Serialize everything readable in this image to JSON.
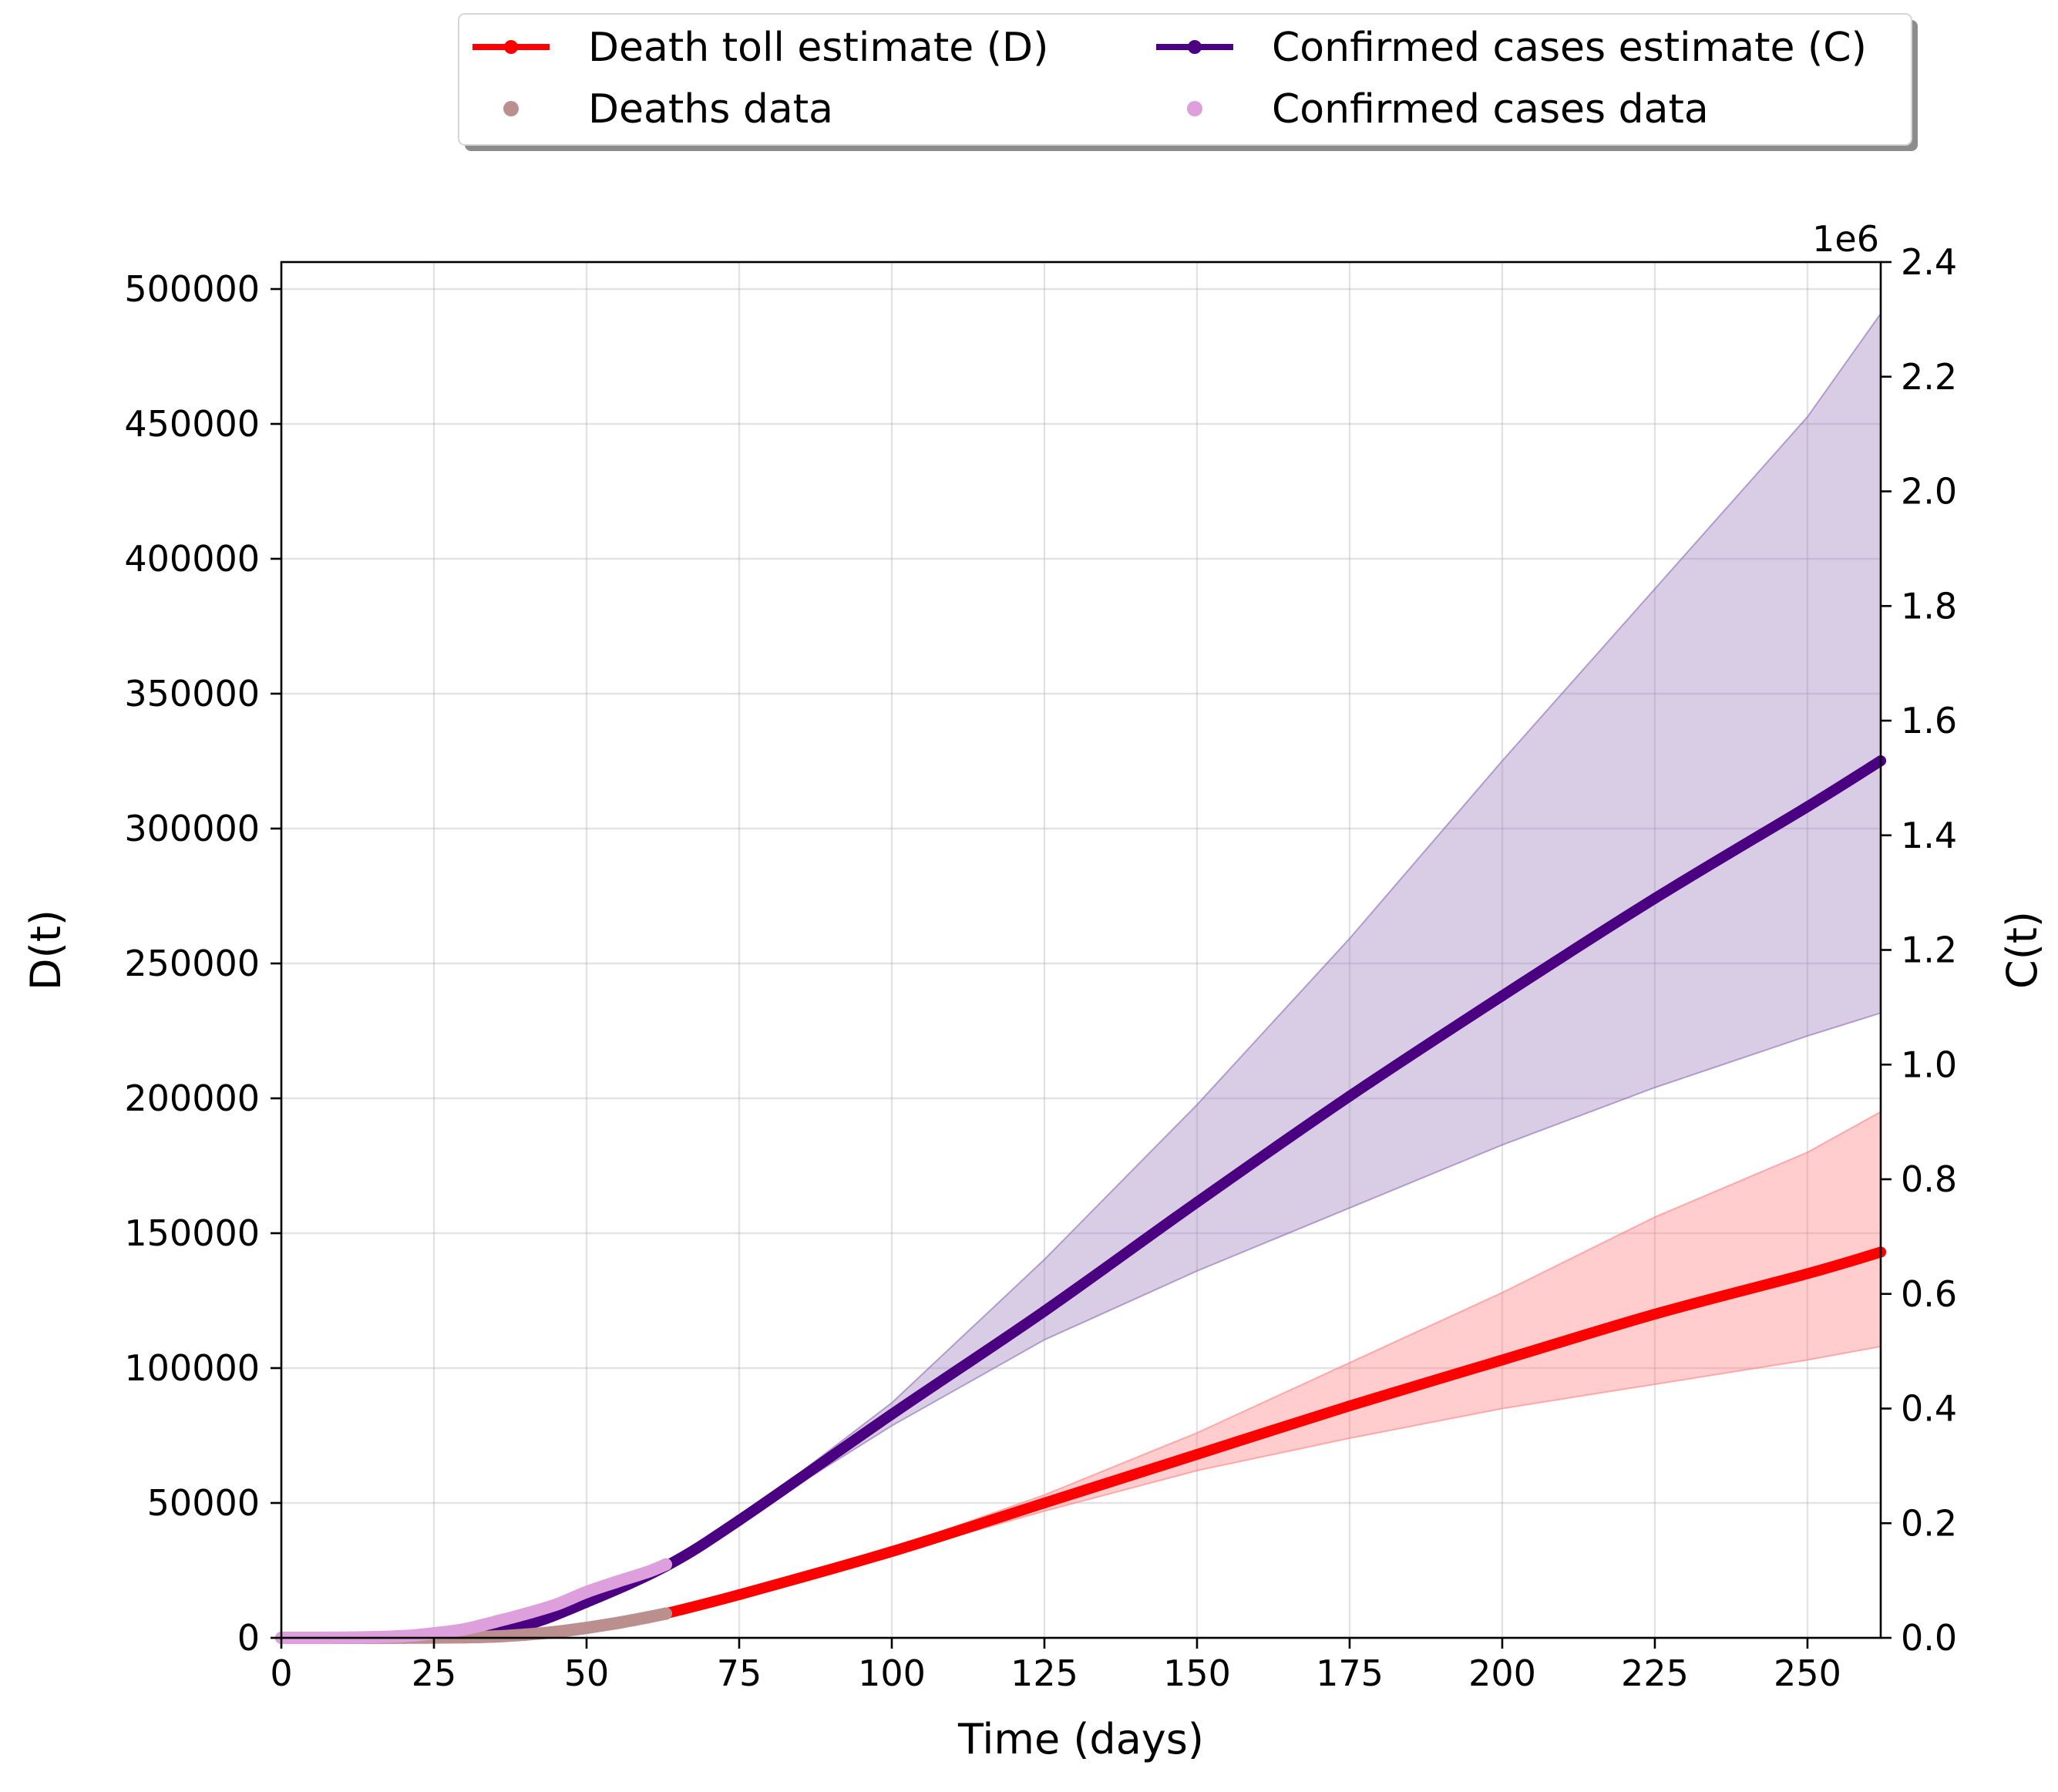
{
  "chart_data": {
    "type": "line",
    "title": "",
    "xlabel": "Time (days)",
    "ylabel_left": "D(t)",
    "ylabel_right": "C(t)",
    "right_axis_offset_label": "1e6",
    "xlim": [
      0,
      262
    ],
    "ylim_left": [
      0,
      510000
    ],
    "ylim_right": [
      0,
      2400000
    ],
    "x_ticks": [
      0,
      25,
      50,
      75,
      100,
      125,
      150,
      175,
      200,
      225,
      250
    ],
    "y_ticks_left": [
      0,
      50000,
      100000,
      150000,
      200000,
      250000,
      300000,
      350000,
      400000,
      450000,
      500000
    ],
    "y_ticks_right": [
      0.0,
      0.2,
      0.4,
      0.6,
      0.8,
      1.0,
      1.2,
      1.4,
      1.6,
      1.8,
      2.0,
      2.2,
      2.4
    ],
    "grid": true,
    "legend_placement": "top, above plot",
    "series": [
      {
        "name": "Death toll estimate (D)",
        "axis": "left",
        "color": "#ff0000",
        "x": [
          63,
          75,
          100,
          125,
          150,
          175,
          200,
          225,
          250,
          262
        ],
        "y": [
          9000,
          16000,
          32000,
          50000,
          68000,
          86000,
          103000,
          120000,
          135000,
          143000
        ],
        "band_lower": [
          9000,
          16000,
          31000,
          47000,
          62000,
          74000,
          85000,
          94000,
          103000,
          108000
        ],
        "band_upper": [
          9000,
          16000,
          33000,
          53000,
          76000,
          102000,
          128000,
          156000,
          180000,
          195000
        ]
      },
      {
        "name": "Confirmed cases estimate (C)",
        "axis": "right",
        "color": "#4b0082",
        "x": [
          30,
          40,
          50,
          63,
          75,
          100,
          125,
          150,
          175,
          200,
          225,
          250,
          262
        ],
        "y": [
          5000,
          22000,
          62000,
          125000,
          205000,
          390000,
          570000,
          760000,
          945000,
          1120000,
          1290000,
          1450000,
          1530000
        ],
        "band_lower": [
          5000,
          22000,
          62000,
          125000,
          203000,
          370000,
          520000,
          640000,
          750000,
          860000,
          960000,
          1050000,
          1090000
        ],
        "band_upper": [
          5000,
          22000,
          62000,
          125000,
          207000,
          410000,
          660000,
          930000,
          1220000,
          1530000,
          1830000,
          2130000,
          2310000
        ]
      },
      {
        "name": "Deaths data",
        "axis": "left",
        "color": "#bc8f8f",
        "x": [
          0,
          10,
          20,
          30,
          35,
          40,
          45,
          50,
          55,
          60,
          63
        ],
        "y": [
          0,
          0,
          50,
          200,
          500,
          1200,
          2200,
          3700,
          5500,
          7600,
          9000
        ]
      },
      {
        "name": "Confirmed cases data",
        "axis": "right",
        "color": "#dda0dd",
        "x": [
          0,
          10,
          20,
          25,
          30,
          35,
          40,
          45,
          50,
          55,
          60,
          63
        ],
        "y": [
          0,
          300,
          3000,
          8000,
          15000,
          28000,
          42000,
          58000,
          80000,
          98000,
          115000,
          128000
        ]
      }
    ]
  }
}
